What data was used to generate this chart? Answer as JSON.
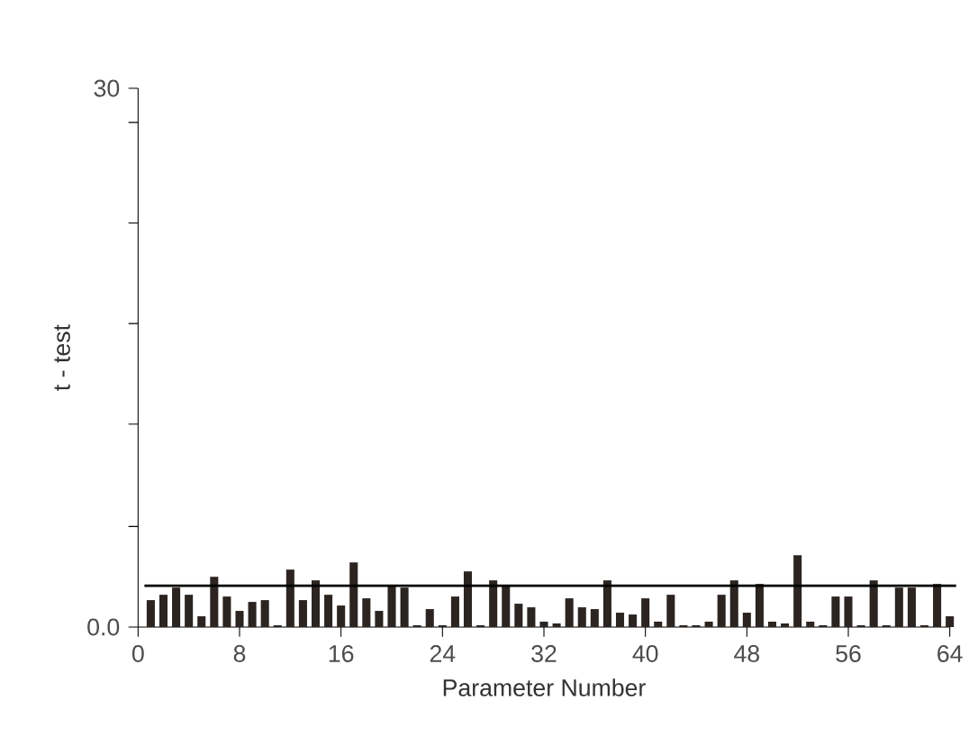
{
  "chart_data": {
    "type": "bar",
    "xlabel": "Parameter Number",
    "ylabel": "t - test",
    "x": [
      1,
      2,
      3,
      4,
      5,
      6,
      7,
      8,
      9,
      10,
      11,
      12,
      13,
      14,
      15,
      16,
      17,
      18,
      19,
      20,
      21,
      22,
      23,
      24,
      25,
      26,
      27,
      28,
      29,
      30,
      31,
      32,
      33,
      34,
      35,
      36,
      37,
      38,
      39,
      40,
      41,
      42,
      43,
      44,
      45,
      46,
      47,
      48,
      49,
      50,
      51,
      52,
      53,
      54,
      55,
      56,
      57,
      58,
      59,
      60,
      61,
      62,
      63,
      64
    ],
    "values": [
      1.5,
      1.8,
      2.2,
      1.8,
      0.6,
      2.8,
      1.7,
      0.9,
      1.4,
      1.5,
      0.1,
      3.2,
      1.5,
      2.6,
      1.8,
      1.2,
      3.6,
      1.6,
      0.9,
      2.3,
      2.2,
      0.1,
      1.0,
      0.1,
      1.7,
      3.1,
      0.1,
      2.6,
      2.3,
      1.3,
      1.1,
      0.3,
      0.2,
      1.6,
      1.1,
      1.0,
      2.6,
      0.8,
      0.7,
      1.6,
      0.3,
      1.8,
      0.1,
      0.1,
      0.3,
      1.8,
      2.6,
      0.8,
      2.4,
      0.3,
      0.2,
      4.0,
      0.3,
      0.1,
      1.7,
      1.7,
      0.1,
      2.6,
      0.1,
      2.2,
      2.2,
      0.1,
      2.4,
      0.6
    ],
    "color": "#2b2420",
    "xlim": [
      0,
      64
    ],
    "xticks": [
      0,
      8,
      16,
      24,
      32,
      40,
      48,
      56,
      64
    ],
    "ylim": [
      0,
      30
    ],
    "yticks": [
      {
        "value": 0,
        "label": "0.0"
      },
      {
        "value": 5.6,
        "label": null
      },
      {
        "value": 11.3,
        "label": null
      },
      {
        "value": 16.9,
        "label": null
      },
      {
        "value": 22.5,
        "label": null
      },
      {
        "value": 28.1,
        "label": null
      },
      {
        "value": 30,
        "label": "30"
      }
    ],
    "ref_lines": [
      {
        "axis": "y",
        "value": 2.3
      }
    ]
  }
}
